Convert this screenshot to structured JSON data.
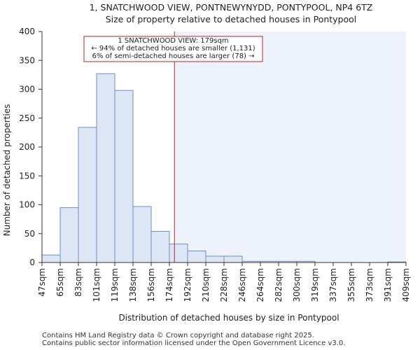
{
  "chart_data": {
    "type": "bar",
    "title": "1, SNATCHWOOD VIEW, PONTNEWYNYDD, PONTYPOOL, NP4 6TZ",
    "subtitle": "Size of property relative to detached houses in Pontypool",
    "xlabel": "Distribution of detached houses by size in Pontypool",
    "ylabel": "Number of detached properties",
    "ylim": [
      0,
      400
    ],
    "yticks": [
      0,
      50,
      100,
      150,
      200,
      250,
      300,
      350,
      400
    ],
    "bin_edges": [
      47,
      65,
      83,
      101,
      119,
      138,
      156,
      174,
      192,
      210,
      228,
      246,
      264,
      282,
      300,
      319,
      337,
      355,
      373,
      391,
      409
    ],
    "tick_labels": [
      "47sqm",
      "65sqm",
      "83sqm",
      "101sqm",
      "119sqm",
      "138sqm",
      "156sqm",
      "174sqm",
      "192sqm",
      "210sqm",
      "228sqm",
      "246sqm",
      "264sqm",
      "282sqm",
      "300sqm",
      "319sqm",
      "337sqm",
      "355sqm",
      "373sqm",
      "391sqm",
      "409sqm"
    ],
    "values": [
      13,
      95,
      234,
      327,
      298,
      97,
      54,
      32,
      20,
      11,
      11,
      2,
      2,
      2,
      2,
      0,
      0,
      0,
      0,
      1
    ],
    "marker": {
      "value": 179,
      "annotation_lines": [
        "1 SNATCHWOOD VIEW: 179sqm",
        "← 94% of detached houses are smaller (1,131)",
        "6% of semi-detached houses are larger (78) →"
      ]
    },
    "grid": false,
    "colors": {
      "bar_fill": "#dce6f5",
      "bar_stroke": "#6a8fc6",
      "marker_line": "#b0232a",
      "highlight_region": "#eef2fb"
    }
  },
  "footer": {
    "line1": "Contains HM Land Registry data © Crown copyright and database right 2025.",
    "line2": "Contains public sector information licensed under the Open Government Licence v3.0."
  }
}
